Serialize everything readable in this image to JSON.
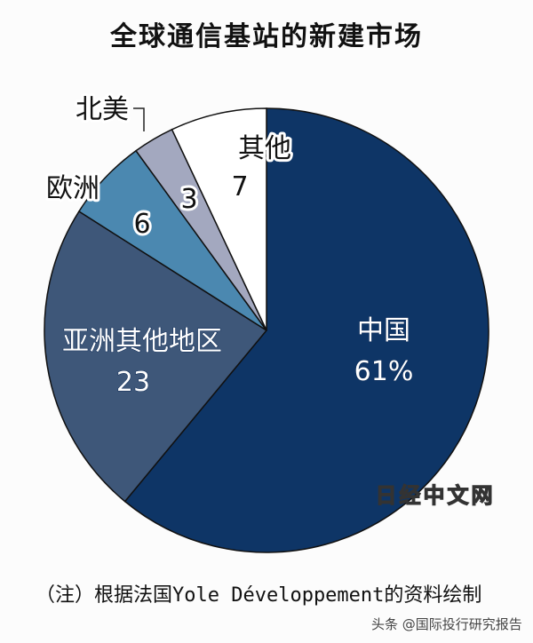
{
  "chart_data": {
    "type": "pie",
    "title": "全球通信基站的新建市场",
    "start": "top",
    "direction": "clockwise",
    "slices": [
      {
        "label": "中国",
        "value": 61,
        "value_label": "61%",
        "color": "#0e3566"
      },
      {
        "label": "亚洲其他地区",
        "value": 23,
        "value_label": "23",
        "color": "#3e5779"
      },
      {
        "label": "欧洲",
        "value": 6,
        "value_label": "6",
        "color": "#4b88b0"
      },
      {
        "label": "北美",
        "value": 3,
        "value_label": "3",
        "color": "#a3a8bf"
      },
      {
        "label": "其他",
        "value": 7,
        "value_label": "7",
        "color": "#ffffff"
      }
    ],
    "note": "（注）根据法国Yole Développement的资料绘制"
  },
  "watermark": "日经中文网",
  "credit": "头条 @国际投行研究报告"
}
